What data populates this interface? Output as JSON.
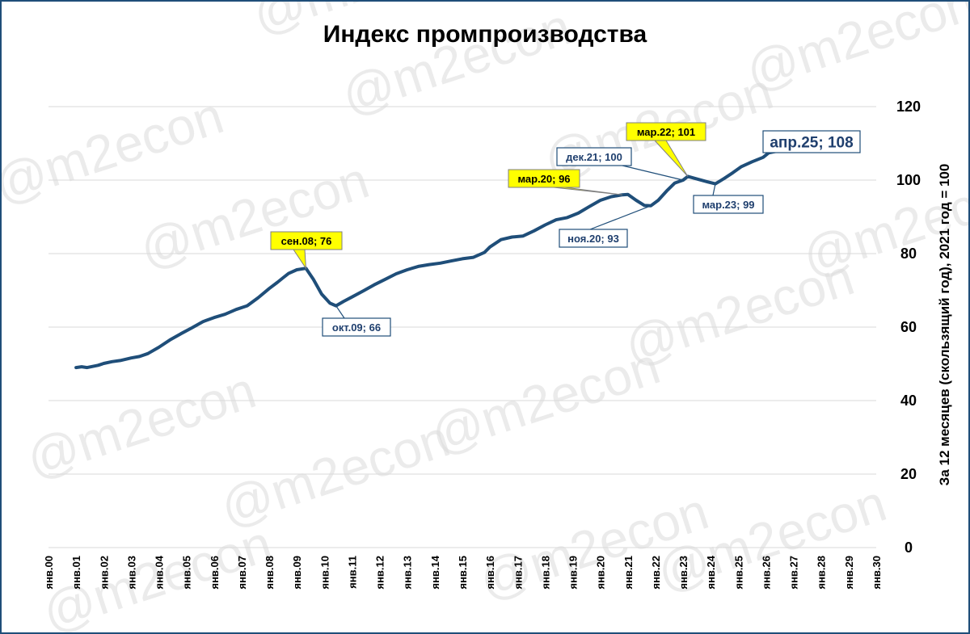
{
  "colors": {
    "line": "#1f4e79",
    "grid": "#d9d9d9",
    "highlight": "#ffff00",
    "frame": "#1f4e79",
    "watermark": "#dcdcdc"
  },
  "watermark_text": "@m2econ",
  "chart_data": {
    "type": "line",
    "title": "Индекс промпроизводства",
    "ylabel": "За 12 месяцев (скользящий год), 2021 год =  100",
    "xlabel": "",
    "ylim": [
      0,
      120
    ],
    "yticks": [
      0,
      20,
      40,
      60,
      80,
      100,
      120
    ],
    "xlim": [
      2000,
      2030
    ],
    "x_tick_labels": [
      "янв.00",
      "янв.01",
      "янв.02",
      "янв.03",
      "янв.04",
      "янв.05",
      "янв.06",
      "янв.07",
      "янв.08",
      "янв.09",
      "янв.10",
      "янв.11",
      "янв.12",
      "янв.13",
      "янв.14",
      "янв.15",
      "янв.16",
      "янв.17",
      "янв.18",
      "янв.19",
      "янв.20",
      "янв.21",
      "янв.22",
      "янв.23",
      "янв.24",
      "янв.25",
      "янв.26",
      "янв.27",
      "янв.28",
      "янв.29",
      "янв.30"
    ],
    "grid": true,
    "legend": "none",
    "series": [
      {
        "points": [
          [
            2001.0,
            49.0
          ],
          [
            2001.2,
            49.2
          ],
          [
            2001.4,
            49.0
          ],
          [
            2001.6,
            49.3
          ],
          [
            2001.8,
            49.6
          ],
          [
            2002.0,
            50.1
          ],
          [
            2002.3,
            50.6
          ],
          [
            2002.6,
            50.9
          ],
          [
            2003.0,
            51.6
          ],
          [
            2003.3,
            52.0
          ],
          [
            2003.6,
            52.8
          ],
          [
            2004.0,
            54.5
          ],
          [
            2004.4,
            56.5
          ],
          [
            2004.8,
            58.2
          ],
          [
            2005.2,
            59.8
          ],
          [
            2005.6,
            61.5
          ],
          [
            2006.0,
            62.6
          ],
          [
            2006.4,
            63.5
          ],
          [
            2006.8,
            64.8
          ],
          [
            2007.2,
            65.8
          ],
          [
            2007.6,
            68.0
          ],
          [
            2008.0,
            70.5
          ],
          [
            2008.3,
            72.2
          ],
          [
            2008.5,
            73.4
          ],
          [
            2008.7,
            74.6
          ],
          [
            2009.0,
            75.6
          ],
          [
            2009.33,
            76.0
          ],
          [
            2009.6,
            73.0
          ],
          [
            2009.9,
            69.0
          ],
          [
            2010.2,
            66.5
          ],
          [
            2010.42,
            65.8
          ],
          [
            2010.7,
            67.0
          ],
          [
            2011.0,
            68.2
          ],
          [
            2011.4,
            69.8
          ],
          [
            2011.8,
            71.5
          ],
          [
            2012.2,
            73.0
          ],
          [
            2012.6,
            74.5
          ],
          [
            2013.0,
            75.6
          ],
          [
            2013.4,
            76.5
          ],
          [
            2013.8,
            77.0
          ],
          [
            2014.2,
            77.4
          ],
          [
            2014.6,
            78.0
          ],
          [
            2015.0,
            78.6
          ],
          [
            2015.4,
            79.0
          ],
          [
            2015.8,
            80.3
          ],
          [
            2016.0,
            81.8
          ],
          [
            2016.4,
            83.8
          ],
          [
            2016.8,
            84.5
          ],
          [
            2017.2,
            84.8
          ],
          [
            2017.6,
            86.2
          ],
          [
            2018.0,
            87.8
          ],
          [
            2018.4,
            89.2
          ],
          [
            2018.8,
            89.8
          ],
          [
            2019.2,
            91.0
          ],
          [
            2019.6,
            92.8
          ],
          [
            2020.0,
            94.5
          ],
          [
            2020.4,
            95.5
          ],
          [
            2020.8,
            96.0
          ],
          [
            2021.0,
            96.1
          ],
          [
            2021.3,
            94.5
          ],
          [
            2021.6,
            93.1
          ],
          [
            2021.83,
            93.0
          ],
          [
            2022.1,
            94.5
          ],
          [
            2022.4,
            97.0
          ],
          [
            2022.7,
            99.2
          ],
          [
            2023.0,
            100.0
          ],
          [
            2023.17,
            101.0
          ],
          [
            2023.5,
            100.3
          ],
          [
            2023.9,
            99.5
          ],
          [
            2024.17,
            99.0
          ],
          [
            2024.5,
            100.5
          ],
          [
            2024.8,
            102.0
          ],
          [
            2025.1,
            103.6
          ],
          [
            2025.5,
            105.0
          ],
          [
            2025.9,
            106.2
          ],
          [
            2026.1,
            107.4
          ],
          [
            2026.35,
            107.8
          ]
        ]
      }
    ],
    "annotations": [
      {
        "text": "сен.08; 76",
        "x": 2009.33,
        "y": 76,
        "highlight": true
      },
      {
        "text": "окт.09; 66",
        "x": 2010.42,
        "y": 65.8,
        "highlight": false
      },
      {
        "text": "мар.20; 96",
        "x": 2020.8,
        "y": 96,
        "highlight": true
      },
      {
        "text": "ноя.20; 93",
        "x": 2021.83,
        "y": 93,
        "highlight": false
      },
      {
        "text": "дек.21; 100",
        "x": 2023.0,
        "y": 100,
        "highlight": false
      },
      {
        "text": "мар.22; 101",
        "x": 2023.17,
        "y": 101,
        "highlight": true
      },
      {
        "text": "мар.23; 99",
        "x": 2024.17,
        "y": 99,
        "highlight": false
      },
      {
        "text": "апр.25; 108",
        "x": 2026.35,
        "y": 107.8,
        "highlight": false,
        "emphasis": true
      }
    ]
  }
}
